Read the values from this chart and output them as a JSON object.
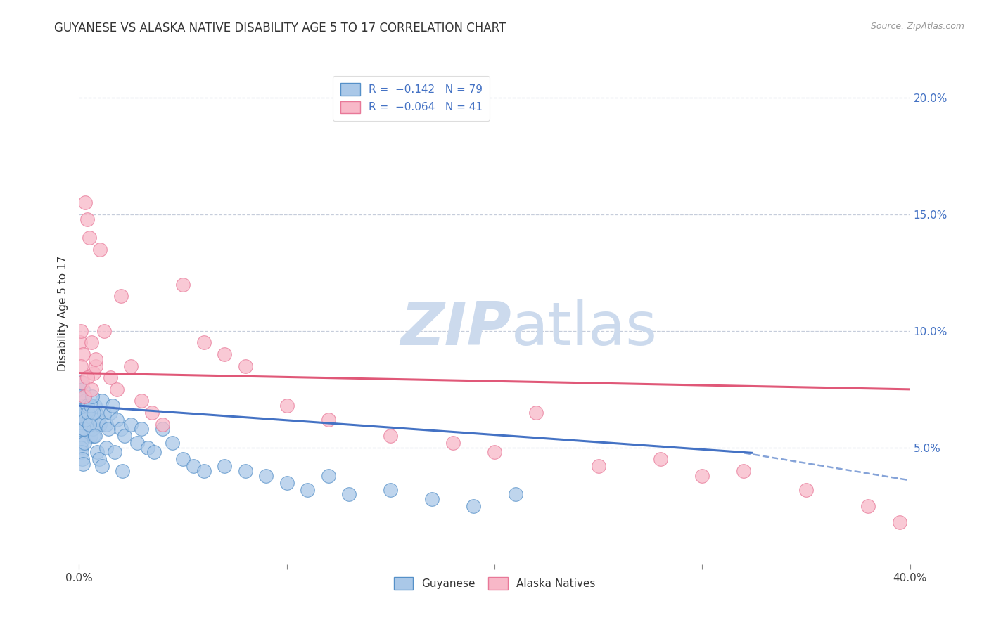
{
  "title": "GUYANESE VS ALASKA NATIVE DISABILITY AGE 5 TO 17 CORRELATION CHART",
  "source": "Source: ZipAtlas.com",
  "ylabel": "Disability Age 5 to 17",
  "ytick_labels": [
    "5.0%",
    "10.0%",
    "15.0%",
    "20.0%"
  ],
  "ytick_values": [
    0.05,
    0.1,
    0.15,
    0.2
  ],
  "xlim": [
    0.0,
    0.4
  ],
  "ylim": [
    0.0,
    0.215
  ],
  "blue_color": "#aac8e8",
  "blue_edge_color": "#5590c8",
  "blue_line_color": "#4472c4",
  "pink_color": "#f8b8c8",
  "pink_edge_color": "#e87898",
  "pink_line_color": "#e05878",
  "watermark_color": "#ccdaed",
  "background_color": "#ffffff",
  "title_fontsize": 12,
  "axis_label_fontsize": 11,
  "tick_fontsize": 11,
  "blue_line_start_y": 0.068,
  "blue_line_end_y_solid": 0.048,
  "blue_line_solid_end_x": 0.32,
  "blue_line_end_y_dashed": 0.036,
  "pink_line_start_y": 0.082,
  "pink_line_end_y": 0.075,
  "guyanese_x": [
    0.0005,
    0.0008,
    0.001,
    0.0012,
    0.0015,
    0.0018,
    0.002,
    0.0022,
    0.0025,
    0.003,
    0.0035,
    0.004,
    0.0045,
    0.005,
    0.0055,
    0.006,
    0.0065,
    0.007,
    0.0075,
    0.008,
    0.009,
    0.01,
    0.011,
    0.012,
    0.013,
    0.014,
    0.015,
    0.016,
    0.018,
    0.02,
    0.022,
    0.025,
    0.028,
    0.03,
    0.033,
    0.036,
    0.04,
    0.045,
    0.05,
    0.055,
    0.06,
    0.07,
    0.08,
    0.09,
    0.1,
    0.11,
    0.12,
    0.13,
    0.15,
    0.17,
    0.19,
    0.21,
    0.0003,
    0.0003,
    0.0004,
    0.0005,
    0.0006,
    0.0007,
    0.0009,
    0.001,
    0.0013,
    0.0016,
    0.002,
    0.0023,
    0.0026,
    0.003,
    0.0038,
    0.0042,
    0.0048,
    0.0055,
    0.0062,
    0.0068,
    0.0075,
    0.0085,
    0.0095,
    0.011,
    0.013,
    0.017,
    0.021
  ],
  "guyanese_y": [
    0.065,
    0.072,
    0.078,
    0.068,
    0.062,
    0.058,
    0.075,
    0.071,
    0.064,
    0.07,
    0.06,
    0.066,
    0.058,
    0.062,
    0.055,
    0.06,
    0.058,
    0.055,
    0.068,
    0.065,
    0.062,
    0.06,
    0.07,
    0.065,
    0.06,
    0.058,
    0.065,
    0.068,
    0.062,
    0.058,
    0.055,
    0.06,
    0.052,
    0.058,
    0.05,
    0.048,
    0.058,
    0.052,
    0.045,
    0.042,
    0.04,
    0.042,
    0.04,
    0.038,
    0.035,
    0.032,
    0.038,
    0.03,
    0.032,
    0.028,
    0.025,
    0.03,
    0.068,
    0.072,
    0.065,
    0.06,
    0.058,
    0.055,
    0.052,
    0.05,
    0.048,
    0.045,
    0.043,
    0.058,
    0.052,
    0.062,
    0.068,
    0.065,
    0.06,
    0.068,
    0.072,
    0.065,
    0.055,
    0.048,
    0.045,
    0.042,
    0.05,
    0.048,
    0.04
  ],
  "alaska_x": [
    0.0005,
    0.001,
    0.002,
    0.003,
    0.004,
    0.005,
    0.006,
    0.007,
    0.008,
    0.01,
    0.012,
    0.015,
    0.018,
    0.02,
    0.025,
    0.03,
    0.035,
    0.04,
    0.05,
    0.06,
    0.07,
    0.08,
    0.1,
    0.12,
    0.15,
    0.18,
    0.2,
    0.22,
    0.25,
    0.28,
    0.3,
    0.32,
    0.35,
    0.38,
    0.395,
    0.0008,
    0.0015,
    0.0025,
    0.004,
    0.006,
    0.008
  ],
  "alaska_y": [
    0.095,
    0.1,
    0.09,
    0.155,
    0.148,
    0.14,
    0.095,
    0.082,
    0.085,
    0.135,
    0.1,
    0.08,
    0.075,
    0.115,
    0.085,
    0.07,
    0.065,
    0.06,
    0.12,
    0.095,
    0.09,
    0.085,
    0.068,
    0.062,
    0.055,
    0.052,
    0.048,
    0.065,
    0.042,
    0.045,
    0.038,
    0.04,
    0.032,
    0.025,
    0.018,
    0.085,
    0.078,
    0.072,
    0.08,
    0.075,
    0.088
  ]
}
